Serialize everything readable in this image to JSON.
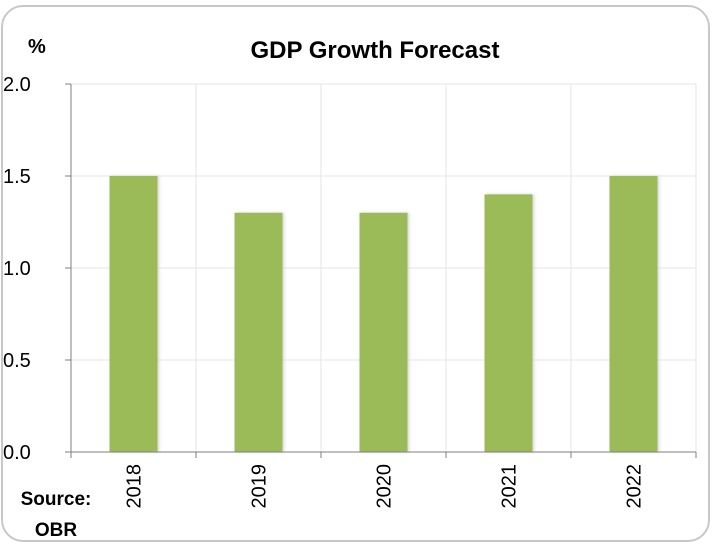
{
  "chart_data": {
    "type": "bar",
    "title": "GDP Growth Forecast",
    "ylabel": "%",
    "xlabel": "",
    "categories": [
      "2018",
      "2019",
      "2020",
      "2021",
      "2022"
    ],
    "values": [
      1.5,
      1.3,
      1.3,
      1.4,
      1.5
    ],
    "ylim": [
      0,
      2.0
    ],
    "yticks": [
      "0.0",
      "0.5",
      "1.0",
      "1.5",
      "2.0"
    ],
    "grid": true,
    "legend": "none",
    "bar_color": "#9bbb59"
  },
  "source": {
    "label": "Source:",
    "name": "OBR"
  }
}
